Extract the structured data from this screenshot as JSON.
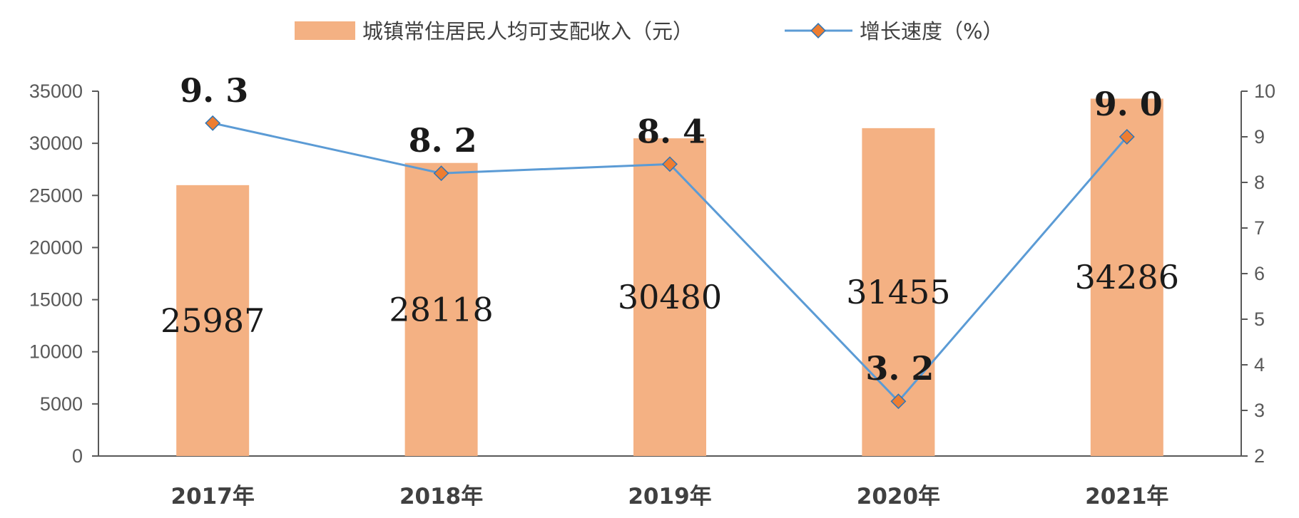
{
  "chart_data": {
    "type": "bar",
    "categories": [
      "2017年",
      "2018年",
      "2019年",
      "2020年",
      "2021年"
    ],
    "series": [
      {
        "name": "城镇常住居民人均可支配收入（元）",
        "type": "bar",
        "axis": "left",
        "values": [
          25987,
          28118,
          30480,
          31455,
          34286
        ],
        "labels": [
          "25987",
          "28118",
          "30480",
          "31455",
          "34286"
        ],
        "color": "#F4B183"
      },
      {
        "name": "增长速度（%）",
        "type": "line",
        "axis": "right",
        "values": [
          9.3,
          8.2,
          8.4,
          3.2,
          9.0
        ],
        "labels": [
          "9. 3",
          "8. 2",
          "8. 4",
          "3. 2",
          "9. 0"
        ],
        "color": "#5B9BD5",
        "marker_color": "#ED7D31"
      }
    ],
    "y_left": {
      "ylim": [
        0,
        35000
      ],
      "ticks": [
        "0",
        "5000",
        "10000",
        "15000",
        "20000",
        "25000",
        "30000",
        "35000"
      ]
    },
    "y_right": {
      "ylim": [
        2,
        10
      ],
      "ticks": [
        "2",
        "3",
        "4",
        "5",
        "6",
        "7",
        "8",
        "9",
        "10"
      ]
    },
    "legend": {
      "position": "top"
    },
    "grid": false
  }
}
